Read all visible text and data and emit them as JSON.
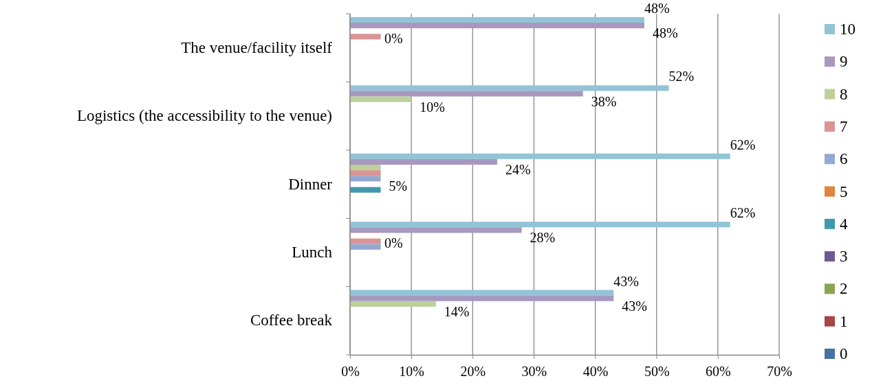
{
  "chart_data": {
    "type": "bar",
    "orientation": "horizontal",
    "categories": [
      "The venue/facility itself",
      "Logistics (the accessibility to the venue)",
      "Dinner",
      "Lunch",
      "Coffee break"
    ],
    "series": [
      {
        "name": "10",
        "color": "#93c4d6",
        "values": [
          48,
          52,
          62,
          62,
          43
        ],
        "value_labels": [
          "48%",
          "52%",
          "62%",
          "62%",
          "43%"
        ]
      },
      {
        "name": "9",
        "color": "#a898c0",
        "values": [
          48,
          38,
          24,
          28,
          43
        ],
        "value_labels": [
          "48%",
          "38%",
          "24%",
          "28%",
          "43%"
        ]
      },
      {
        "name": "8",
        "color": "#bcd09a",
        "values": [
          0,
          10,
          5,
          0,
          14
        ],
        "value_labels": [
          "0%",
          "10%",
          null,
          "0%",
          "14%"
        ]
      },
      {
        "name": "7",
        "color": "#d99594",
        "values": [
          5,
          0,
          5,
          5,
          0
        ]
      },
      {
        "name": "6",
        "color": "#95a8d2",
        "values": [
          0,
          0,
          5,
          5,
          0
        ],
        "value_labels": [
          null,
          null,
          "5%",
          null,
          null
        ]
      },
      {
        "name": "5",
        "color": "#e0843e",
        "values": [
          0,
          0,
          0,
          0,
          0
        ]
      },
      {
        "name": "4",
        "color": "#4198ae",
        "values": [
          0,
          0,
          5,
          0,
          0
        ]
      },
      {
        "name": "3",
        "color": "#6e5a93",
        "values": [
          0,
          0,
          0,
          0,
          0
        ]
      },
      {
        "name": "2",
        "color": "#8aa552",
        "values": [
          0,
          0,
          0,
          0,
          0
        ]
      },
      {
        "name": "1",
        "color": "#a84444",
        "values": [
          0,
          0,
          0,
          0,
          0
        ]
      },
      {
        "name": "0",
        "color": "#4572a7",
        "values": [
          0,
          0,
          0,
          0,
          0
        ]
      }
    ],
    "xlim": [
      0,
      70
    ],
    "xticks": [
      {
        "value": 0,
        "label": "0%"
      },
      {
        "value": 10,
        "label": "10%"
      },
      {
        "value": 20,
        "label": "20%"
      },
      {
        "value": 30,
        "label": "30%"
      },
      {
        "value": 40,
        "label": "40%"
      },
      {
        "value": 50,
        "label": "50%"
      },
      {
        "value": 60,
        "label": "60%"
      },
      {
        "value": 70,
        "label": "70%"
      }
    ],
    "grid": "x",
    "legend": "right"
  }
}
